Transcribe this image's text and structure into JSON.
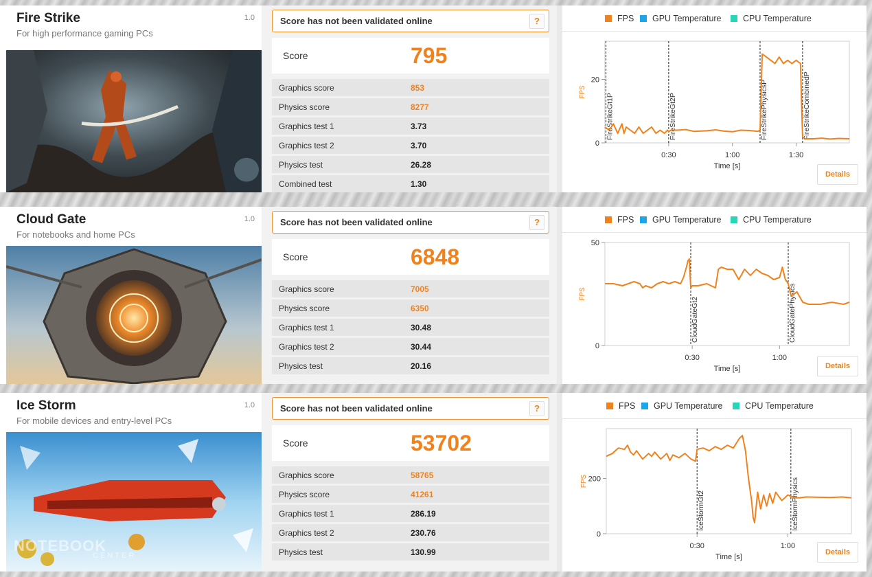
{
  "colors": {
    "accent": "#f0821e",
    "fps": "#f0821e",
    "gpu_temp": "#1aa6e8",
    "cpu_temp": "#27d6b8"
  },
  "benchmarks": [
    {
      "title": "Fire Strike",
      "subtitle": "For high performance gaming PCs",
      "version": "1.0",
      "validation": "Score has not been validated online",
      "help": "?",
      "score_label": "Score",
      "score": "795",
      "rows": [
        {
          "label": "Graphics score",
          "value": "853",
          "highlight": true
        },
        {
          "label": "Physics score",
          "value": "8277",
          "highlight": true
        },
        {
          "label": "Graphics test 1",
          "value": "3.73",
          "highlight": false
        },
        {
          "label": "Graphics test 2",
          "value": "3.70",
          "highlight": false
        },
        {
          "label": "Physics test",
          "value": "26.28",
          "highlight": false
        },
        {
          "label": "Combined test",
          "value": "1.30",
          "highlight": false
        }
      ],
      "legend": [
        "FPS",
        "GPU Temperature",
        "CPU Temperature"
      ],
      "details": "Details",
      "chart_data": {
        "type": "line",
        "ylabel": "FPS",
        "xlabel": "Time [s]",
        "xlim": [
          0,
          115
        ],
        "ylim": [
          0,
          32
        ],
        "yticks": [
          {
            "v": 0,
            "label": "0"
          },
          {
            "v": 20,
            "label": "20"
          }
        ],
        "xticks": [
          {
            "v": 30,
            "label": "0:30"
          },
          {
            "v": 60,
            "label": "1:00"
          },
          {
            "v": 90,
            "label": "1:30"
          }
        ],
        "markers": [
          {
            "x": 0.5,
            "label": "FireStrikeGt1P"
          },
          {
            "x": 30,
            "label": "FireStrikeGt2P"
          },
          {
            "x": 73,
            "label": "FireStrikePhysicsP"
          },
          {
            "x": 93,
            "label": "FireStrikeCombinedP"
          }
        ],
        "series": [
          {
            "name": "FPS",
            "x": [
              0,
              2,
              4,
              6,
              8,
              9,
              10,
              12,
              14,
              16,
              18,
              20,
              22,
              24,
              26,
              28,
              29.5,
              30,
              31,
              34,
              38,
              42,
              48,
              52,
              56,
              60,
              64,
              68,
              72,
              73,
              74,
              76,
              78,
              80,
              82,
              84,
              86,
              88,
              90,
              92,
              93,
              94,
              98,
              102,
              106,
              110,
              115
            ],
            "y": [
              5,
              4,
              6,
              3,
              6,
              3,
              5,
              4,
              3,
              5,
              3,
              4,
              5,
              3,
              4,
              3,
              4,
              3.5,
              4,
              4,
              4.2,
              3.6,
              3.8,
              4.1,
              3.7,
              3.5,
              4,
              3.9,
              3.6,
              4,
              28,
              27,
              26,
              25,
              27,
              25,
              26,
              25,
              26,
              25,
              2,
              1.3,
              1.3,
              1.5,
              1.2,
              1.4,
              1.3
            ]
          }
        ]
      }
    },
    {
      "title": "Cloud Gate",
      "subtitle": "For notebooks and home PCs",
      "version": "1.0",
      "validation": "Score has not been validated online",
      "help": "?",
      "score_label": "Score",
      "score": "6848",
      "rows": [
        {
          "label": "Graphics score",
          "value": "7005",
          "highlight": true
        },
        {
          "label": "Physics score",
          "value": "6350",
          "highlight": true
        },
        {
          "label": "Graphics test 1",
          "value": "30.48",
          "highlight": false
        },
        {
          "label": "Graphics test 2",
          "value": "30.44",
          "highlight": false
        },
        {
          "label": "Physics test",
          "value": "20.16",
          "highlight": false
        }
      ],
      "legend": [
        "FPS",
        "GPU Temperature",
        "CPU Temperature"
      ],
      "details": "Details",
      "chart_data": {
        "type": "line",
        "ylabel": "FPS",
        "xlabel": "Time [s]",
        "xlim": [
          0,
          84
        ],
        "ylim": [
          0,
          50
        ],
        "yticks": [
          {
            "v": 0,
            "label": "0"
          },
          {
            "v": 50,
            "label": "50"
          }
        ],
        "xticks": [
          {
            "v": 30,
            "label": "0:30"
          },
          {
            "v": 60,
            "label": "1:00"
          }
        ],
        "markers": [
          {
            "x": 29.5,
            "label": "CloudGateGt2"
          },
          {
            "x": 63,
            "label": "CloudGatePhysics"
          }
        ],
        "series": [
          {
            "name": "FPS",
            "x": [
              0,
              3,
              6,
              8,
              10,
              12,
              13,
              14,
              16,
              18,
              20,
              22,
              24,
              26,
              27,
              28,
              28.5,
              29,
              29.5,
              30,
              32,
              35,
              38,
              39,
              40,
              42,
              44,
              46,
              48,
              50,
              52,
              54,
              56,
              58,
              60,
              61,
              62,
              63,
              64,
              66,
              68,
              70,
              74,
              78,
              82,
              84
            ],
            "y": [
              30,
              30,
              29,
              30,
              31,
              30,
              28,
              29,
              28,
              30,
              31,
              30,
              31,
              30,
              33,
              38,
              41,
              42,
              28,
              29,
              29,
              30,
              28,
              37,
              38,
              37,
              37,
              32,
              37,
              34,
              37,
              35,
              34,
              32,
              33,
              38,
              32,
              30,
              24,
              26,
              21,
              20,
              20,
              21,
              20,
              21
            ]
          }
        ]
      }
    },
    {
      "title": "Ice Storm",
      "subtitle": "For mobile devices and entry-level PCs",
      "version": "1.0",
      "validation": "Score has not been validated online",
      "help": "?",
      "score_label": "Score",
      "score": "53702",
      "rows": [
        {
          "label": "Graphics score",
          "value": "58765",
          "highlight": true
        },
        {
          "label": "Physics score",
          "value": "41261",
          "highlight": true
        },
        {
          "label": "Graphics test 1",
          "value": "286.19",
          "highlight": false
        },
        {
          "label": "Graphics test 2",
          "value": "230.76",
          "highlight": false
        },
        {
          "label": "Physics test",
          "value": "130.99",
          "highlight": false
        }
      ],
      "legend": [
        "FPS",
        "GPU Temperature",
        "CPU Temperature"
      ],
      "details": "Details",
      "chart_data": {
        "type": "line",
        "ylabel": "FPS",
        "xlabel": "Time [s]",
        "xlim": [
          0,
          81
        ],
        "ylim": [
          0,
          380
        ],
        "yticks": [
          {
            "v": 0,
            "label": "0"
          },
          {
            "v": 200,
            "label": "200"
          }
        ],
        "xticks": [
          {
            "v": 30,
            "label": "0:30"
          },
          {
            "v": 60,
            "label": "1:00"
          }
        ],
        "markers": [
          {
            "x": 30,
            "label": "IceStormGt2"
          },
          {
            "x": 61,
            "label": "IceStormPhysics"
          }
        ],
        "series": [
          {
            "name": "FPS",
            "x": [
              0,
              2,
              4,
              6,
              7,
              8,
              9,
              10,
              12,
              14,
              15,
              16,
              18,
              20,
              21,
              22,
              24,
              26,
              28,
              29.5,
              30,
              32,
              34,
              36,
              38,
              40,
              42,
              44,
              45,
              46,
              47,
              48,
              48.5,
              49,
              50,
              51,
              52,
              53,
              54,
              55,
              56,
              58,
              60,
              61,
              62,
              64,
              66,
              70,
              74,
              78,
              81
            ],
            "y": [
              280,
              290,
              310,
              305,
              320,
              295,
              285,
              300,
              270,
              290,
              280,
              295,
              270,
              290,
              265,
              285,
              275,
              290,
              270,
              262,
              305,
              310,
              300,
              315,
              305,
              320,
              310,
              345,
              355,
              300,
              200,
              120,
              60,
              40,
              150,
              90,
              140,
              100,
              145,
              110,
              150,
              120,
              140,
              135,
              130,
              130,
              133,
              132,
              131,
              133,
              130
            ]
          }
        ]
      }
    }
  ],
  "watermark": {
    "line1": "NOTEBOOK",
    "line2": "CENTER"
  }
}
